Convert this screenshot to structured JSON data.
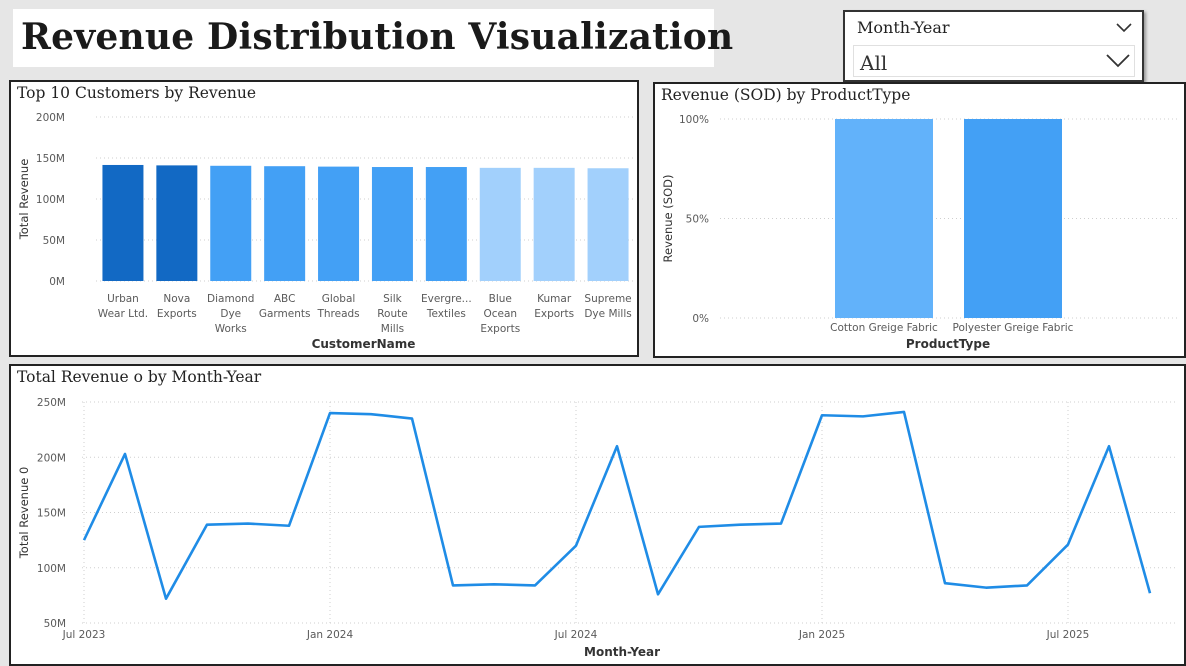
{
  "page_title": "Revenue Distribution Visualization",
  "slicer": {
    "label": "Month-Year",
    "value": "All"
  },
  "colors": {
    "dark_blue": "#1269c4",
    "mid_blue": "#43a0f5",
    "light_blue": "#a2d0fc",
    "cotton_blue": "#62b2fa",
    "line_blue": "#1f8ce6",
    "grid": "#cfcfcf",
    "axis_text": "#5a5a5a"
  },
  "chart_data": [
    {
      "type": "bar",
      "title": "Top 10 Customers by Revenue",
      "xlabel": "CustomerName",
      "ylabel": "Total Revenue",
      "ylim": [
        0,
        200000000
      ],
      "yticks": [
        "0M",
        "50M",
        "100M",
        "150M",
        "200M"
      ],
      "categories": [
        "Urban Wear Ltd.",
        "Nova Exports",
        "Diamond Dye Works",
        "ABC Garments",
        "Global Threads",
        "Silk Route Mills",
        "Evergre...",
        "Blue Ocean Exports",
        "Kumar Exports",
        "Supreme Dye Mills"
      ],
      "category_lines": [
        [
          "Urban",
          "Wear Ltd."
        ],
        [
          "Nova",
          "Exports"
        ],
        [
          "Diamond",
          "Dye",
          "Works"
        ],
        [
          "ABC",
          "Garments"
        ],
        [
          "Global",
          "Threads"
        ],
        [
          "Silk",
          "Route",
          "Mills"
        ],
        [
          "Evergre...",
          "Textiles"
        ],
        [
          "Blue",
          "Ocean",
          "Exports"
        ],
        [
          "Kumar",
          "Exports"
        ],
        [
          "Supreme",
          "Dye Mills"
        ]
      ],
      "values": [
        141500000,
        141000000,
        140500000,
        140000000,
        139500000,
        139000000,
        139000000,
        138000000,
        138000000,
        137500000
      ],
      "bar_colors": [
        "dark_blue",
        "dark_blue",
        "mid_blue",
        "mid_blue",
        "mid_blue",
        "mid_blue",
        "mid_blue",
        "light_blue",
        "light_blue",
        "light_blue"
      ],
      "grid": true
    },
    {
      "type": "bar",
      "title": "Revenue (SOD) by ProductType",
      "xlabel": "ProductType",
      "ylabel": "Revenue (SOD)",
      "ylim": [
        0,
        100
      ],
      "yticks": [
        "0%",
        "50%",
        "100%"
      ],
      "categories": [
        "Cotton Greige Fabric",
        "Polyester Greige Fabric"
      ],
      "values": [
        100,
        100
      ],
      "bar_colors": [
        "cotton_blue",
        "mid_blue"
      ],
      "grid": true
    },
    {
      "type": "line",
      "title": "Total Revenue o by Month-Year",
      "xlabel": "Month-Year",
      "ylabel": "Total Revenue 0",
      "ylim": [
        50000000,
        250000000
      ],
      "yticks": [
        "50M",
        "100M",
        "150M",
        "200M",
        "250M"
      ],
      "xticks": [
        "Jul 2023",
        "Jan 2024",
        "Jul 2024",
        "Jan 2025",
        "Jul 2025"
      ],
      "x": [
        "2023-07",
        "2023-08",
        "2023-09",
        "2023-10",
        "2023-11",
        "2023-12",
        "2024-01",
        "2024-02",
        "2024-03",
        "2024-04",
        "2024-05",
        "2024-06",
        "2024-07",
        "2024-08",
        "2024-09",
        "2024-10",
        "2024-11",
        "2024-12",
        "2025-01",
        "2025-02",
        "2025-03",
        "2025-04",
        "2025-05",
        "2025-06",
        "2025-07",
        "2025-08",
        "2025-09"
      ],
      "series": [
        {
          "values": [
            125000000,
            203000000,
            72000000,
            139000000,
            140000000,
            138000000,
            240000000,
            239000000,
            235000000,
            84000000,
            85000000,
            84000000,
            120000000,
            210000000,
            76000000,
            137000000,
            139000000,
            140000000,
            238000000,
            237000000,
            241000000,
            86000000,
            82000000,
            84000000,
            121000000,
            210000000,
            77000000
          ]
        }
      ],
      "grid": true
    }
  ]
}
